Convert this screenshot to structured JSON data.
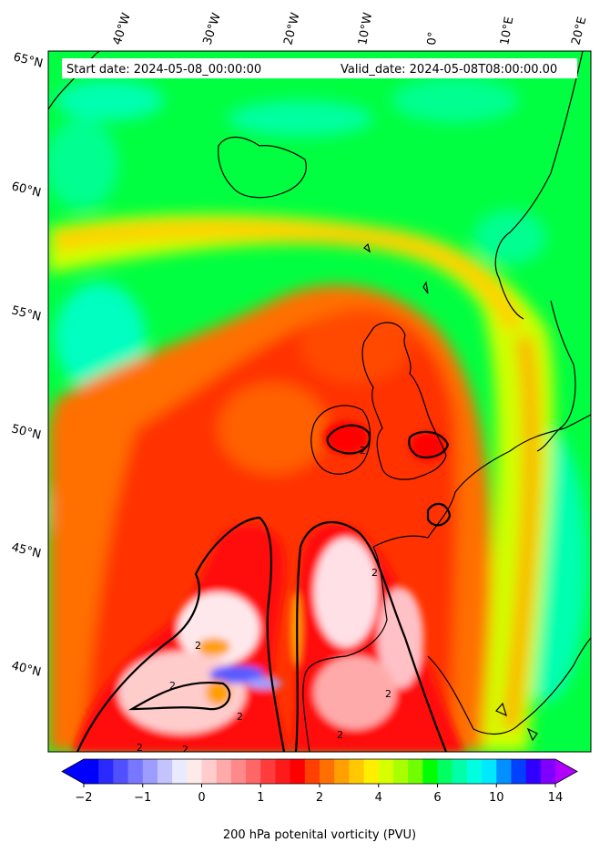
{
  "header": {
    "start_label": "Start date: 2024-05-08_00:00:00",
    "valid_label": "Valid_date: 2024-05-08T08:00:00.00"
  },
  "map": {
    "lon_labels": [
      "40°W",
      "30°W",
      "20°W",
      "10°W",
      "0°",
      "10°E",
      "20°E"
    ],
    "lat_labels": [
      "65°N",
      "60°N",
      "55°N",
      "50°N",
      "45°N",
      "40°N"
    ],
    "contour_label": "2"
  },
  "colorbar": {
    "title": "200 hPa potenital vorticity (PVU)",
    "tick_labels": [
      "−2",
      "−1",
      "0",
      "1",
      "2",
      "4",
      "6",
      "10",
      "14"
    ],
    "colors": [
      "#0000ff",
      "#2a2aff",
      "#5050ff",
      "#7777ff",
      "#9d9dff",
      "#c3c3ff",
      "#eaeaff",
      "#ffeaea",
      "#ffcccc",
      "#ffaaaa",
      "#ff8888",
      "#ff6666",
      "#ff3b3b",
      "#ff1a1a",
      "#ff0000",
      "#ff4000",
      "#ff7000",
      "#ffa000",
      "#ffc800",
      "#ffee00",
      "#d8ff00",
      "#a8ff00",
      "#70ff00",
      "#00ff00",
      "#00ff60",
      "#00ffa8",
      "#00ffe0",
      "#00e8ff",
      "#0090ff",
      "#0040ff",
      "#3000ff",
      "#8000ff"
    ],
    "under_color": "#0000ff",
    "over_color": "#b000ff"
  }
}
